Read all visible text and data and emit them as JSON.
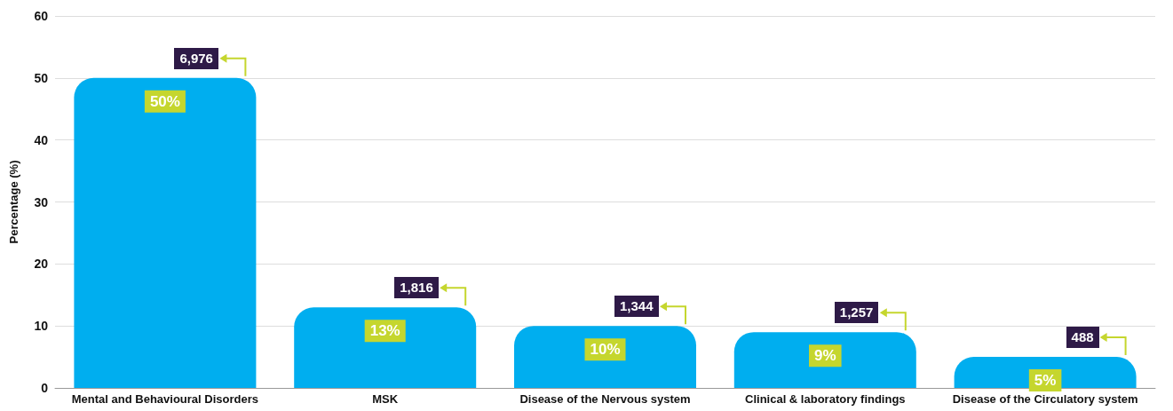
{
  "chart_data": {
    "type": "bar",
    "ylabel": "Percentage (%)",
    "categories": [
      "Mental and Behavioural Disorders",
      "MSK",
      "Disease of the Nervous system",
      "Clinical & laboratory findings",
      "Disease of the Circulatory system"
    ],
    "values": [
      50,
      13,
      10,
      9,
      5
    ],
    "value_labels": [
      "50%",
      "13%",
      "10%",
      "9%",
      "5%"
    ],
    "color": "#00aeef",
    "ylim": [
      0,
      60
    ],
    "yticks": [
      0,
      10,
      20,
      30,
      40,
      50,
      60
    ],
    "grid": "y",
    "annotations": [
      {
        "text": "6,976",
        "x": "Mental and Behavioural Disorders",
        "y": 50
      },
      {
        "text": "1,816",
        "x": "MSK",
        "y": 13
      },
      {
        "text": "1,344",
        "x": "Disease of the Nervous system",
        "y": 10
      },
      {
        "text": "1,257",
        "x": "Clinical & laboratory findings",
        "y": 9
      },
      {
        "text": "488",
        "x": "Disease of the Circulatory system",
        "y": 5
      }
    ]
  }
}
